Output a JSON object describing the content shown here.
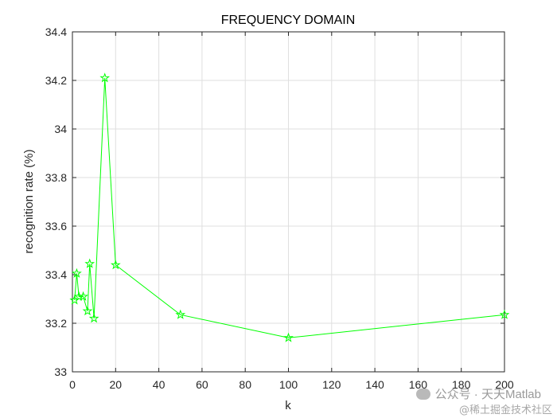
{
  "chart_data": {
    "type": "line",
    "title": "FREQUENCY DOMAIN",
    "xlabel": "k",
    "ylabel": "recognition rate (%)",
    "xlim": [
      0,
      200
    ],
    "ylim": [
      33,
      34.4
    ],
    "xticks": [
      0,
      20,
      40,
      60,
      80,
      100,
      120,
      140,
      160,
      180,
      200
    ],
    "yticks": [
      33,
      33.2,
      33.4,
      33.6,
      33.8,
      34,
      34.2,
      34.4
    ],
    "ytick_labels": [
      "33",
      "33.2",
      "33.4",
      "33.6",
      "33.8",
      "34",
      "34.2",
      "34.4"
    ],
    "grid": true,
    "series": [
      {
        "color": "#00ff00",
        "marker": "pentagram",
        "x": [
          1,
          2,
          3,
          5,
          7,
          8,
          10,
          15,
          20,
          50,
          100,
          200
        ],
        "y": [
          33.295,
          33.405,
          33.31,
          33.31,
          33.25,
          33.445,
          33.22,
          34.21,
          33.44,
          33.235,
          33.14,
          33.235
        ]
      }
    ]
  },
  "watermark": {
    "line1": "公众号 · 天天Matlab",
    "line2": "@稀土掘金技术社区"
  }
}
